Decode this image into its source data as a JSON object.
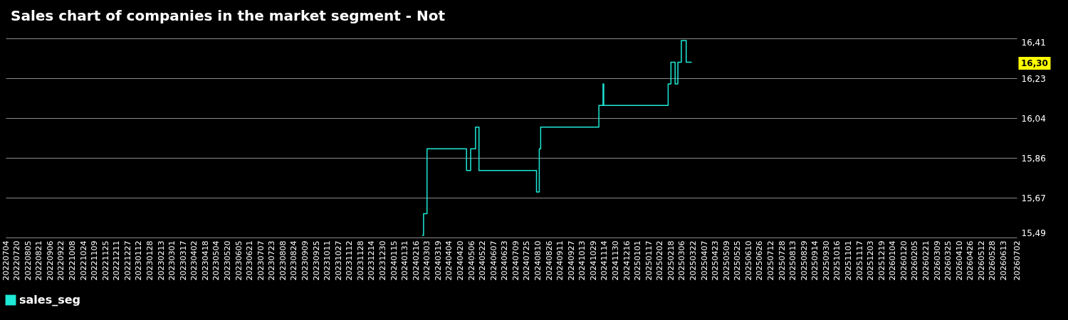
{
  "chart_data": {
    "type": "step",
    "title": "Sales chart of companies in the market segment - Not",
    "x": [
      "2024-02-25",
      "2024-02-27",
      "2024-03-03",
      "2024-04-29",
      "2024-05-05",
      "2024-05-12",
      "2024-05-17",
      "2024-08-08",
      "2024-08-12",
      "2024-08-14",
      "2024-11-06",
      "2024-11-12",
      "2024-11-13",
      "2025-02-14",
      "2025-02-18",
      "2025-02-24",
      "2025-02-28",
      "2025-03-05",
      "2025-03-12",
      "2025-03-20"
    ],
    "series": [
      {
        "name": "sales_seg",
        "color": "#1de9d6",
        "values": [
          15.5,
          15.6,
          15.9,
          15.8,
          15.9,
          16.0,
          15.8,
          15.7,
          15.9,
          16.0,
          16.1,
          16.2,
          16.1,
          16.2,
          16.3,
          16.2,
          16.3,
          16.4,
          16.3,
          16.3
        ]
      }
    ],
    "xlim": [
      "2022-07-04",
      "2026-07-02"
    ],
    "xticks": [
      {
        "value": "2022-07-04",
        "label": "20220704"
      },
      {
        "value": "2022-07-20",
        "label": "20220720"
      },
      {
        "value": "2022-08-05",
        "label": "20220805"
      },
      {
        "value": "2022-08-21",
        "label": "20220821"
      },
      {
        "value": "2022-09-06",
        "label": "20220906"
      },
      {
        "value": "2022-09-22",
        "label": "20220922"
      },
      {
        "value": "2022-10-08",
        "label": "20221008"
      },
      {
        "value": "2022-10-24",
        "label": "20221024"
      },
      {
        "value": "2022-11-09",
        "label": "20221109"
      },
      {
        "value": "2022-11-25",
        "label": "20221125"
      },
      {
        "value": "2022-12-11",
        "label": "20221211"
      },
      {
        "value": "2022-12-27",
        "label": "20221227"
      },
      {
        "value": "2023-01-12",
        "label": "20230112"
      },
      {
        "value": "2023-01-28",
        "label": "20230128"
      },
      {
        "value": "2023-02-13",
        "label": "20230213"
      },
      {
        "value": "2023-03-01",
        "label": "20230301"
      },
      {
        "value": "2023-03-17",
        "label": "20230317"
      },
      {
        "value": "2023-04-02",
        "label": "20230402"
      },
      {
        "value": "2023-04-18",
        "label": "20230418"
      },
      {
        "value": "2023-05-04",
        "label": "20230504"
      },
      {
        "value": "2023-05-20",
        "label": "20230520"
      },
      {
        "value": "2023-06-05",
        "label": "20230605"
      },
      {
        "value": "2023-06-21",
        "label": "20230621"
      },
      {
        "value": "2023-07-07",
        "label": "20230707"
      },
      {
        "value": "2023-07-23",
        "label": "20230723"
      },
      {
        "value": "2023-08-08",
        "label": "20230808"
      },
      {
        "value": "2023-08-24",
        "label": "20230824"
      },
      {
        "value": "2023-09-09",
        "label": "20230909"
      },
      {
        "value": "2023-09-25",
        "label": "20230925"
      },
      {
        "value": "2023-10-11",
        "label": "20231011"
      },
      {
        "value": "2023-10-27",
        "label": "20231027"
      },
      {
        "value": "2023-11-12",
        "label": "20231112"
      },
      {
        "value": "2023-11-28",
        "label": "20231128"
      },
      {
        "value": "2023-12-14",
        "label": "20231214"
      },
      {
        "value": "2023-12-30",
        "label": "20231230"
      },
      {
        "value": "2024-01-15",
        "label": "20240115"
      },
      {
        "value": "2024-01-31",
        "label": "20240131"
      },
      {
        "value": "2024-02-16",
        "label": "20240216"
      },
      {
        "value": "2024-03-03",
        "label": "20240303"
      },
      {
        "value": "2024-03-19",
        "label": "20240319"
      },
      {
        "value": "2024-04-04",
        "label": "20240404"
      },
      {
        "value": "2024-04-20",
        "label": "20240420"
      },
      {
        "value": "2024-05-06",
        "label": "20240506"
      },
      {
        "value": "2024-05-22",
        "label": "20240522"
      },
      {
        "value": "2024-06-07",
        "label": "20240607"
      },
      {
        "value": "2024-06-23",
        "label": "20240623"
      },
      {
        "value": "2024-07-09",
        "label": "20240709"
      },
      {
        "value": "2024-07-25",
        "label": "20240725"
      },
      {
        "value": "2024-08-10",
        "label": "20240810"
      },
      {
        "value": "2024-08-26",
        "label": "20240826"
      },
      {
        "value": "2024-09-11",
        "label": "20240911"
      },
      {
        "value": "2024-09-27",
        "label": "20240927"
      },
      {
        "value": "2024-10-13",
        "label": "20241013"
      },
      {
        "value": "2024-10-29",
        "label": "20241029"
      },
      {
        "value": "2024-11-14",
        "label": "20241114"
      },
      {
        "value": "2024-11-30",
        "label": "20241130"
      },
      {
        "value": "2024-12-16",
        "label": "20241216"
      },
      {
        "value": "2025-01-01",
        "label": "20250101"
      },
      {
        "value": "2025-01-17",
        "label": "20250117"
      },
      {
        "value": "2025-02-02",
        "label": "20250202"
      },
      {
        "value": "2025-02-18",
        "label": "20250218"
      },
      {
        "value": "2025-03-06",
        "label": "20250306"
      },
      {
        "value": "2025-03-22",
        "label": "20250322"
      },
      {
        "value": "2025-04-07",
        "label": "20250407"
      },
      {
        "value": "2025-04-23",
        "label": "20250423"
      },
      {
        "value": "2025-05-09",
        "label": "20250509"
      },
      {
        "value": "2025-05-25",
        "label": "20250525"
      },
      {
        "value": "2025-06-10",
        "label": "20250610"
      },
      {
        "value": "2025-06-26",
        "label": "20250626"
      },
      {
        "value": "2025-07-12",
        "label": "20250712"
      },
      {
        "value": "2025-07-28",
        "label": "20250728"
      },
      {
        "value": "2025-08-13",
        "label": "20250813"
      },
      {
        "value": "2025-08-29",
        "label": "20250829"
      },
      {
        "value": "2025-09-14",
        "label": "20250914"
      },
      {
        "value": "2025-09-30",
        "label": "20250930"
      },
      {
        "value": "2025-10-16",
        "label": "20251016"
      },
      {
        "value": "2025-11-01",
        "label": "20251101"
      },
      {
        "value": "2025-11-17",
        "label": "20251117"
      },
      {
        "value": "2025-12-03",
        "label": "20251203"
      },
      {
        "value": "2025-12-19",
        "label": "20251219"
      },
      {
        "value": "2026-01-04",
        "label": "20260104"
      },
      {
        "value": "2026-01-20",
        "label": "20260120"
      },
      {
        "value": "2026-02-05",
        "label": "20260205"
      },
      {
        "value": "2026-02-21",
        "label": "20260221"
      },
      {
        "value": "2026-03-09",
        "label": "20260309"
      },
      {
        "value": "2026-03-25",
        "label": "20260325"
      },
      {
        "value": "2026-04-10",
        "label": "20260410"
      },
      {
        "value": "2026-04-26",
        "label": "20260426"
      },
      {
        "value": "2026-05-12",
        "label": "20260512"
      },
      {
        "value": "2026-05-28",
        "label": "20260528"
      },
      {
        "value": "2026-06-13",
        "label": "20260613"
      },
      {
        "value": "2026-07-02",
        "label": "20260702"
      }
    ],
    "ylim": [
      15.49,
      16.41
    ],
    "yticks": [
      {
        "value": 15.49,
        "label": "15,49"
      },
      {
        "value": 15.674,
        "label": "15,67"
      },
      {
        "value": 15.858,
        "label": "15,86"
      },
      {
        "value": 16.042,
        "label": "16,04"
      },
      {
        "value": 16.226,
        "label": "16,23"
      },
      {
        "value": 16.41,
        "label": "16,41"
      }
    ],
    "grid": "y",
    "legend": "bottom left",
    "annotations": [
      "16,30"
    ]
  }
}
